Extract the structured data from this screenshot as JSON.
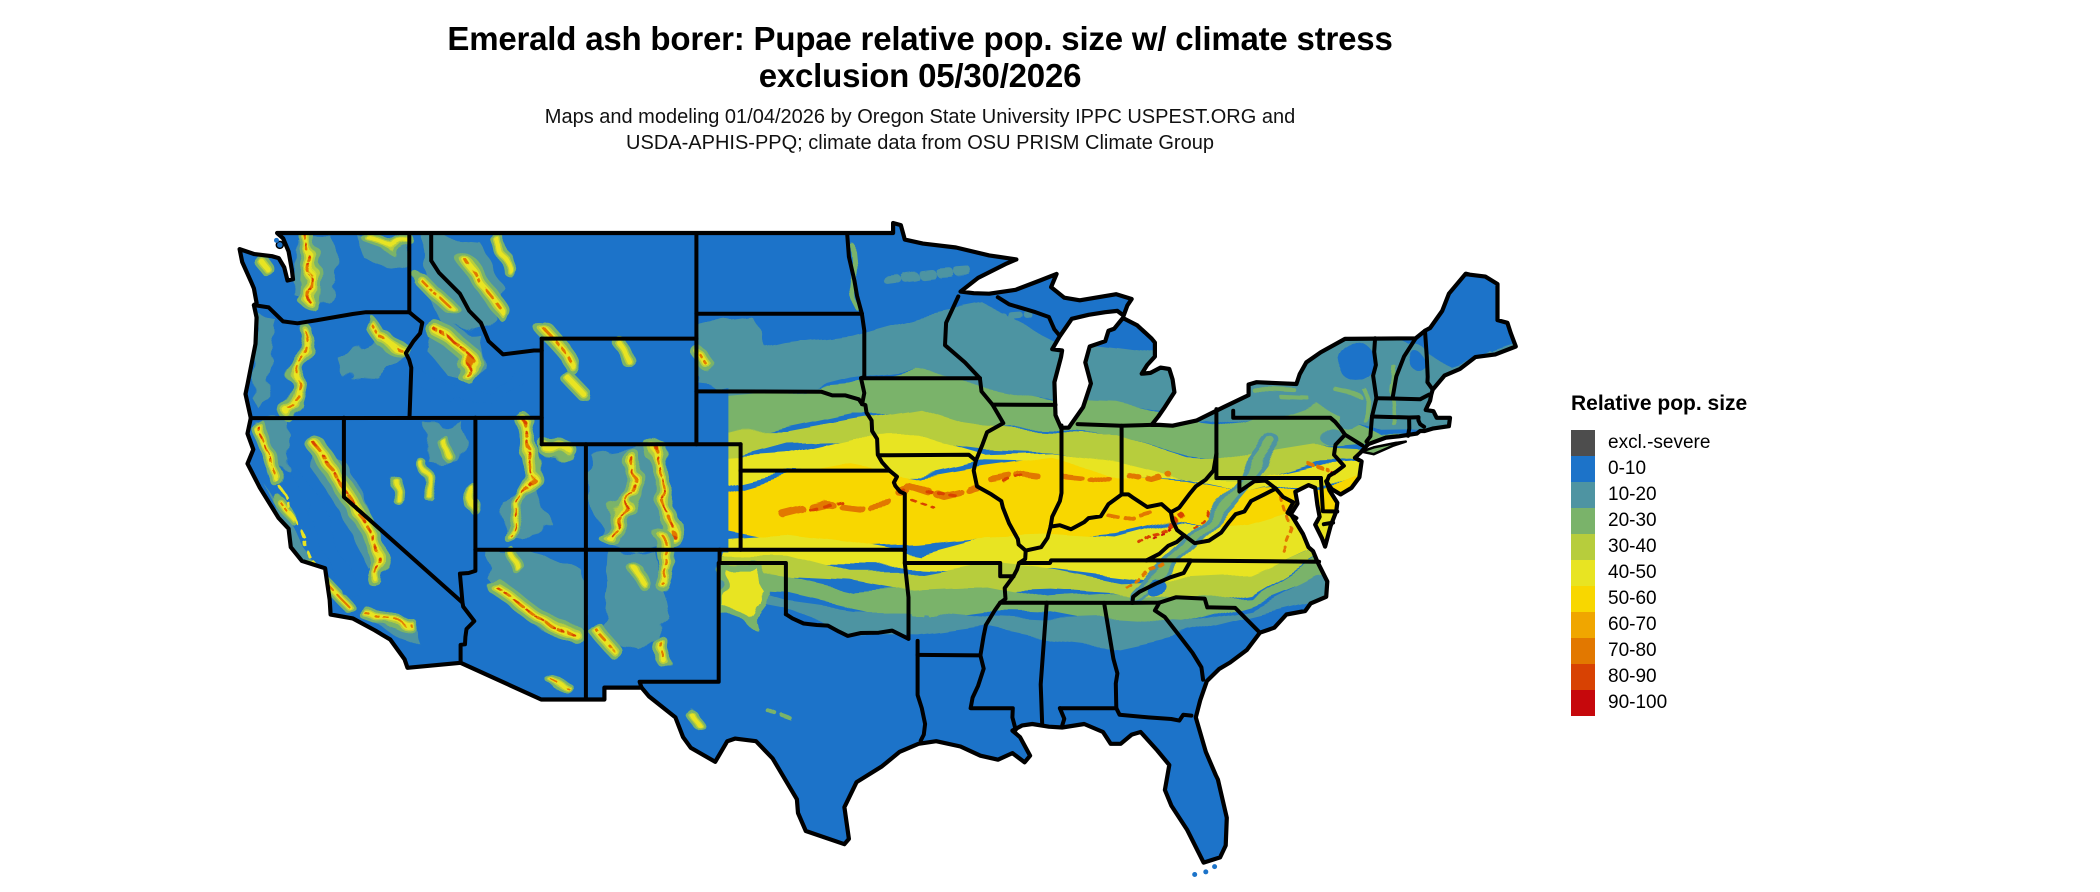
{
  "header": {
    "title_line1": "Emerald ash borer: Pupae relative pop. size w/ climate stress",
    "title_line2": "exclusion 05/30/2026",
    "subtitle_line1": "Maps and modeling 01/04/2026 by Oregon State University IPPC USPEST.ORG and",
    "subtitle_line2": "USDA-APHIS-PPQ; climate data from OSU PRISM Climate Group"
  },
  "legend": {
    "title": "Relative pop. size",
    "entries": [
      {
        "label": "excl.-severe",
        "color": "#4d4d4d"
      },
      {
        "label": "0-10",
        "color": "#1c73c9"
      },
      {
        "label": "10-20",
        "color": "#4e94a2"
      },
      {
        "label": "20-30",
        "color": "#7ab36a"
      },
      {
        "label": "30-40",
        "color": "#b7cd3c"
      },
      {
        "label": "40-50",
        "color": "#e8e422"
      },
      {
        "label": "50-60",
        "color": "#f8d700"
      },
      {
        "label": "60-70",
        "color": "#f0a600"
      },
      {
        "label": "70-80",
        "color": "#e27800"
      },
      {
        "label": "80-90",
        "color": "#d84203"
      },
      {
        "label": "90-100",
        "color": "#c6080c"
      }
    ]
  },
  "map": {
    "border_color": "#000000",
    "background_color": "#ffffff"
  }
}
